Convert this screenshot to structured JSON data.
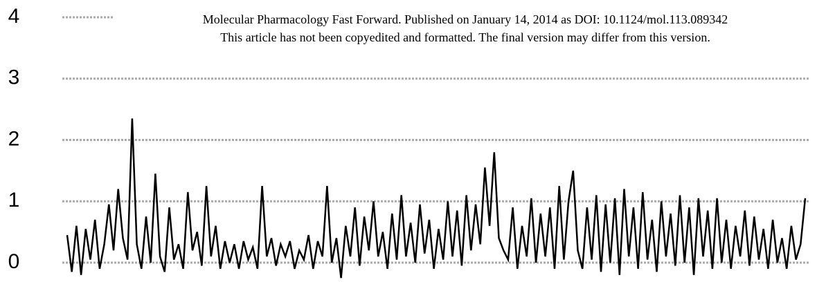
{
  "chart_data": {
    "type": "line",
    "annotations": [
      "Molecular Pharmacology Fast Forward. Published on January 14, 2014 as DOI: 10.1124/mol.113.089342",
      "This article has not been copyedited and formatted. The final version may differ from this version."
    ],
    "values": [
      0.45,
      -0.15,
      0.6,
      -0.2,
      0.55,
      0.05,
      0.7,
      -0.1,
      0.3,
      0.95,
      0.2,
      1.2,
      0.4,
      0.05,
      2.35,
      0.3,
      -0.1,
      0.75,
      0.0,
      1.45,
      0.1,
      -0.15,
      0.9,
      0.05,
      0.3,
      -0.1,
      1.15,
      0.2,
      0.5,
      -0.05,
      1.25,
      0.1,
      0.6,
      -0.1,
      0.35,
      0.0,
      0.3,
      -0.1,
      0.35,
      0.05,
      0.25,
      -0.1,
      1.25,
      0.1,
      0.4,
      -0.05,
      0.3,
      0.1,
      0.35,
      -0.1,
      0.2,
      0.05,
      0.45,
      -0.1,
      0.35,
      0.1,
      1.25,
      0.0,
      0.4,
      -0.25,
      0.6,
      0.1,
      0.9,
      -0.05,
      0.75,
      0.2,
      1.0,
      0.1,
      0.5,
      -0.1,
      0.8,
      0.05,
      1.1,
      0.1,
      0.65,
      0.0,
      0.95,
      0.15,
      0.7,
      -0.1,
      0.55,
      0.05,
      1.0,
      0.1,
      0.85,
      -0.05,
      1.1,
      0.2,
      0.95,
      0.3,
      1.55,
      0.6,
      1.8,
      0.4,
      0.2,
      0.05,
      0.9,
      -0.1,
      0.6,
      0.1,
      1.05,
      0.0,
      0.8,
      0.1,
      0.9,
      -0.1,
      1.25,
      0.05,
      1.0,
      1.5,
      0.2,
      -0.1,
      0.9,
      0.05,
      1.1,
      -0.15,
      0.95,
      0.0,
      1.05,
      -0.2,
      1.2,
      0.1,
      0.9,
      -0.1,
      1.15,
      0.05,
      0.7,
      -0.15,
      1.0,
      0.1,
      0.8,
      -0.05,
      1.1,
      0.0,
      0.9,
      -0.2,
      1.05,
      0.1,
      0.85,
      -0.1,
      1.05,
      0.0,
      0.7,
      -0.1,
      0.6,
      0.1,
      0.85,
      -0.05,
      0.75,
      0.05,
      0.55,
      -0.1,
      0.7,
      0.0,
      0.4,
      -0.1,
      0.6,
      0.05,
      0.3,
      1.05
    ],
    "color": "#000000",
    "ylim": [
      0,
      4
    ],
    "yticks": [
      0,
      1,
      2,
      3,
      4
    ],
    "grid": true
  }
}
